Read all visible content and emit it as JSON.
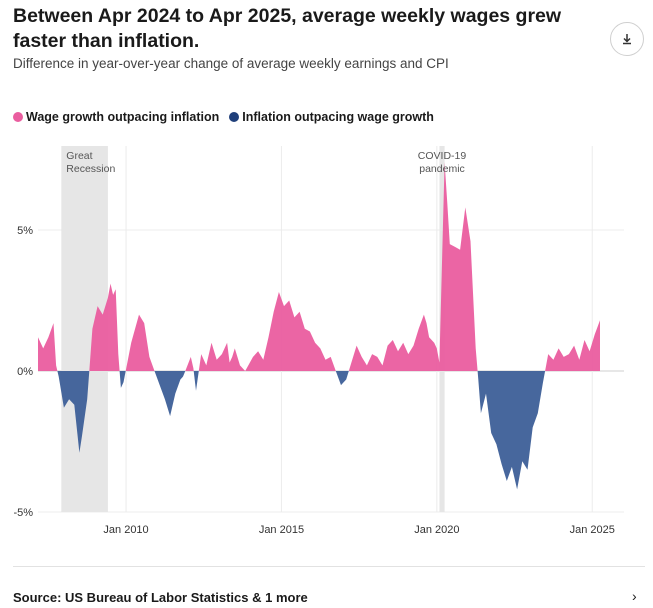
{
  "title": "Between Apr 2024 to Apr 2025, average weekly wages grew faster than inflation.",
  "subtitle": "Difference in year-over-year change of average weekly earnings and CPI",
  "legend": {
    "positive": "Wage growth outpacing inflation",
    "negative": "Inflation outpacing wage growth"
  },
  "colors": {
    "positive": "#ea5d9f",
    "negative": "#3d5f98",
    "shade": "#e6e6e6"
  },
  "source": "Source: US Bureau of Labor Statistics & 1 more",
  "icons": {
    "download": "download-icon",
    "chevron": "chevron-right-icon"
  },
  "chart_data": {
    "type": "area",
    "title": "Between Apr 2024 to Apr 2025, average weekly wages grew faster than inflation.",
    "ylim": [
      -5,
      7.5
    ],
    "xlim": [
      "2007-03",
      "2025-04"
    ],
    "y_ticks": [
      {
        "v": 5,
        "label": "5%"
      },
      {
        "v": 0,
        "label": "0%"
      },
      {
        "v": -5,
        "label": "-5%"
      }
    ],
    "x_ticks": [
      {
        "date": "2010-01",
        "label": "Jan 2010"
      },
      {
        "date": "2015-01",
        "label": "Jan 2015"
      },
      {
        "date": "2020-01",
        "label": "Jan 2020"
      },
      {
        "date": "2025-01",
        "label": "Jan 2025"
      }
    ],
    "grid": true,
    "legend_position": "top-left",
    "annotations": [
      {
        "label": [
          "Great",
          "Recession"
        ],
        "start": "2007-12",
        "end": "2009-06"
      },
      {
        "label": [
          "COVID-19",
          "pandemic"
        ],
        "start": "2020-02",
        "end": "2020-04"
      }
    ],
    "series": [
      {
        "name": "Difference",
        "points": [
          [
            "2007-03",
            1.2
          ],
          [
            "2007-05",
            0.8
          ],
          [
            "2007-07",
            1.2
          ],
          [
            "2007-09",
            1.7
          ],
          [
            "2007-10",
            0.2
          ],
          [
            "2007-11",
            -0.2
          ],
          [
            "2008-01",
            -1.3
          ],
          [
            "2008-03",
            -1.0
          ],
          [
            "2008-05",
            -1.2
          ],
          [
            "2008-07",
            -2.9
          ],
          [
            "2008-08",
            -2.3
          ],
          [
            "2008-10",
            -1.0
          ],
          [
            "2008-12",
            1.5
          ],
          [
            "2009-02",
            2.3
          ],
          [
            "2009-04",
            2.0
          ],
          [
            "2009-06",
            2.6
          ],
          [
            "2009-07",
            3.1
          ],
          [
            "2009-08",
            2.7
          ],
          [
            "2009-09",
            2.9
          ],
          [
            "2009-10",
            0.6
          ],
          [
            "2009-11",
            -0.6
          ],
          [
            "2009-12",
            -0.4
          ],
          [
            "2010-03",
            1.0
          ],
          [
            "2010-06",
            2.0
          ],
          [
            "2010-08",
            1.7
          ],
          [
            "2010-10",
            0.5
          ],
          [
            "2010-12",
            0.0
          ],
          [
            "2011-02",
            -0.5
          ],
          [
            "2011-04",
            -1.0
          ],
          [
            "2011-06",
            -1.6
          ],
          [
            "2011-08",
            -0.8
          ],
          [
            "2011-10",
            -0.3
          ],
          [
            "2011-11",
            -0.2
          ],
          [
            "2012-02",
            0.5
          ],
          [
            "2012-03",
            0.1
          ],
          [
            "2012-04",
            -0.7
          ],
          [
            "2012-06",
            0.6
          ],
          [
            "2012-08",
            0.2
          ],
          [
            "2012-10",
            1.0
          ],
          [
            "2012-12",
            0.4
          ],
          [
            "2013-02",
            0.6
          ],
          [
            "2013-04",
            1.0
          ],
          [
            "2013-05",
            0.3
          ],
          [
            "2013-06",
            0.5
          ],
          [
            "2013-07",
            0.8
          ],
          [
            "2013-09",
            0.2
          ],
          [
            "2013-11",
            0.0
          ],
          [
            "2014-02",
            0.5
          ],
          [
            "2014-04",
            0.7
          ],
          [
            "2014-06",
            0.4
          ],
          [
            "2014-08",
            1.2
          ],
          [
            "2014-10",
            2.1
          ],
          [
            "2014-12",
            2.8
          ],
          [
            "2015-02",
            2.3
          ],
          [
            "2015-04",
            2.5
          ],
          [
            "2015-06",
            1.9
          ],
          [
            "2015-08",
            2.1
          ],
          [
            "2015-10",
            1.5
          ],
          [
            "2015-12",
            1.4
          ],
          [
            "2016-02",
            1.0
          ],
          [
            "2016-04",
            0.8
          ],
          [
            "2016-06",
            0.4
          ],
          [
            "2016-08",
            0.5
          ],
          [
            "2016-10",
            0.0
          ],
          [
            "2016-12",
            -0.5
          ],
          [
            "2017-02",
            -0.3
          ],
          [
            "2017-04",
            0.3
          ],
          [
            "2017-06",
            0.9
          ],
          [
            "2017-08",
            0.5
          ],
          [
            "2017-10",
            0.2
          ],
          [
            "2017-12",
            0.6
          ],
          [
            "2018-02",
            0.5
          ],
          [
            "2018-04",
            0.2
          ],
          [
            "2018-06",
            0.9
          ],
          [
            "2018-08",
            1.1
          ],
          [
            "2018-10",
            0.7
          ],
          [
            "2018-12",
            1.0
          ],
          [
            "2019-02",
            0.6
          ],
          [
            "2019-04",
            0.9
          ],
          [
            "2019-06",
            1.5
          ],
          [
            "2019-08",
            2.0
          ],
          [
            "2019-09",
            1.7
          ],
          [
            "2019-10",
            1.2
          ],
          [
            "2019-12",
            1.0
          ],
          [
            "2020-01",
            0.8
          ],
          [
            "2020-02",
            0.3
          ],
          [
            "2020-04",
            7.4
          ],
          [
            "2020-05",
            6.0
          ],
          [
            "2020-06",
            4.5
          ],
          [
            "2020-08",
            4.4
          ],
          [
            "2020-10",
            4.3
          ],
          [
            "2020-12",
            5.8
          ],
          [
            "2021-02",
            4.6
          ],
          [
            "2021-04",
            0.8
          ],
          [
            "2021-05",
            -0.3
          ],
          [
            "2021-06",
            -1.5
          ],
          [
            "2021-08",
            -0.8
          ],
          [
            "2021-10",
            -2.2
          ],
          [
            "2021-12",
            -2.6
          ],
          [
            "2022-02",
            -3.3
          ],
          [
            "2022-04",
            -3.9
          ],
          [
            "2022-06",
            -3.4
          ],
          [
            "2022-08",
            -4.2
          ],
          [
            "2022-10",
            -3.2
          ],
          [
            "2022-12",
            -3.5
          ],
          [
            "2023-02",
            -2.0
          ],
          [
            "2023-04",
            -1.5
          ],
          [
            "2023-06",
            -0.4
          ],
          [
            "2023-08",
            0.6
          ],
          [
            "2023-10",
            0.4
          ],
          [
            "2023-12",
            0.8
          ],
          [
            "2024-02",
            0.5
          ],
          [
            "2024-04",
            0.6
          ],
          [
            "2024-06",
            0.9
          ],
          [
            "2024-08",
            0.4
          ],
          [
            "2024-10",
            1.1
          ],
          [
            "2024-12",
            0.7
          ],
          [
            "2025-02",
            1.3
          ],
          [
            "2025-04",
            1.8
          ]
        ]
      }
    ]
  }
}
